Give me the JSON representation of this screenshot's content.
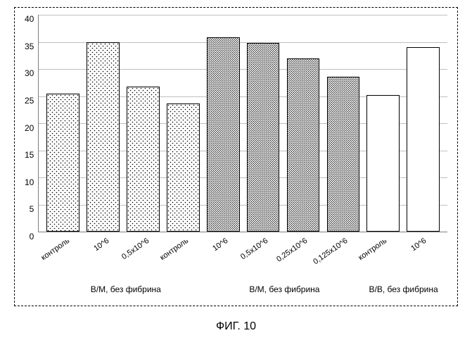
{
  "caption": "ФИГ. 10",
  "chart": {
    "type": "bar",
    "background_color": "#ffffff",
    "grid_color": "#bfbfbf",
    "border_color": "#7f7f7f",
    "ylim": [
      0,
      40
    ],
    "ytick_step": 5,
    "yticks": [
      "0",
      "5",
      "10",
      "15",
      "20",
      "25",
      "30",
      "35",
      "40"
    ],
    "xlabel_fontsize": 11,
    "xlabel_rotation": -35,
    "ytick_fontsize": 12,
    "bar_border_color": "#000000",
    "patterns": {
      "sparse": "pat-dot-sparse",
      "dense": "pat-dot-dense",
      "plain": null
    },
    "fills": {
      "sparse": "url(#pat-dot-sparse)",
      "dense": "url(#pat-dot-dense)",
      "plain": "#ffffff"
    },
    "bars": [
      {
        "label": "контроль",
        "value": 25.5,
        "fill": "sparse"
      },
      {
        "label": "10^6",
        "value": 35.0,
        "fill": "sparse"
      },
      {
        "label": "0,5x10^6",
        "value": 26.8,
        "fill": "sparse"
      },
      {
        "label": "контроль",
        "value": 23.6,
        "fill": "sparse"
      },
      {
        "label": "10^6",
        "value": 35.8,
        "fill": "dense"
      },
      {
        "label": "0,5x10^6",
        "value": 34.8,
        "fill": "dense"
      },
      {
        "label": "0,25x10^6",
        "value": 32.0,
        "fill": "dense"
      },
      {
        "label": "0,125x10^6",
        "value": 28.6,
        "fill": "dense"
      },
      {
        "label": "контроль",
        "value": 25.2,
        "fill": "plain"
      },
      {
        "label": "10^6",
        "value": 34.0,
        "fill": "plain"
      }
    ],
    "groups": [
      {
        "label": "В/М, без фибрина",
        "span": 4
      },
      {
        "label": "В/М, без фибрина",
        "span": 4
      },
      {
        "label": "В/В, без фибрина",
        "span": 2
      }
    ]
  }
}
